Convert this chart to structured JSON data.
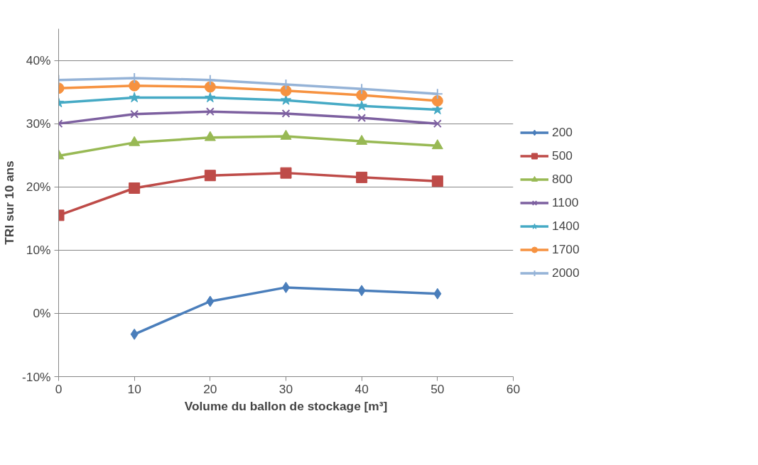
{
  "chart_data": {
    "type": "line",
    "xlabel": "Volume du ballon de stockage [m³]",
    "ylabel": "TRI sur 10 ans",
    "x": [
      0,
      10,
      20,
      30,
      40,
      50
    ],
    "series": [
      {
        "name": "200",
        "color": "#4a7ebb",
        "marker": "diamond",
        "values": [
          null,
          -3.3,
          1.9,
          4.1,
          3.6,
          3.1
        ]
      },
      {
        "name": "500",
        "color": "#be4b48",
        "marker": "square",
        "values": [
          15.5,
          19.8,
          21.8,
          22.2,
          21.5,
          20.9
        ]
      },
      {
        "name": "800",
        "color": "#98b954",
        "marker": "triangle",
        "values": [
          24.9,
          27.0,
          27.8,
          28.0,
          27.2,
          26.5
        ]
      },
      {
        "name": "1100",
        "color": "#7d60a0",
        "marker": "x",
        "values": [
          30.0,
          31.5,
          31.9,
          31.6,
          30.9,
          30.0
        ]
      },
      {
        "name": "1400",
        "color": "#46aac5",
        "marker": "star",
        "values": [
          33.3,
          34.1,
          34.1,
          33.7,
          32.8,
          32.2
        ]
      },
      {
        "name": "1700",
        "color": "#f69240",
        "marker": "circle",
        "values": [
          35.6,
          36.0,
          35.8,
          35.2,
          34.5,
          33.6
        ]
      },
      {
        "name": "2000",
        "color": "#95b3d7",
        "marker": "cross",
        "values": [
          36.9,
          37.2,
          36.9,
          36.2,
          35.5,
          34.7
        ]
      }
    ],
    "xlim": [
      0,
      60
    ],
    "xticks": [
      0,
      10,
      20,
      30,
      40,
      50,
      60
    ],
    "ylim": [
      -10,
      45
    ],
    "yticks": [
      {
        "value": -10,
        "label": "-10%"
      },
      {
        "value": 0,
        "label": "0%"
      },
      {
        "value": 10,
        "label": "10%"
      },
      {
        "value": 20,
        "label": "20%"
      },
      {
        "value": 30,
        "label": "30%"
      },
      {
        "value": 40,
        "label": "40%"
      }
    ],
    "grid": "y",
    "legend": "right",
    "line_style": "solid"
  }
}
